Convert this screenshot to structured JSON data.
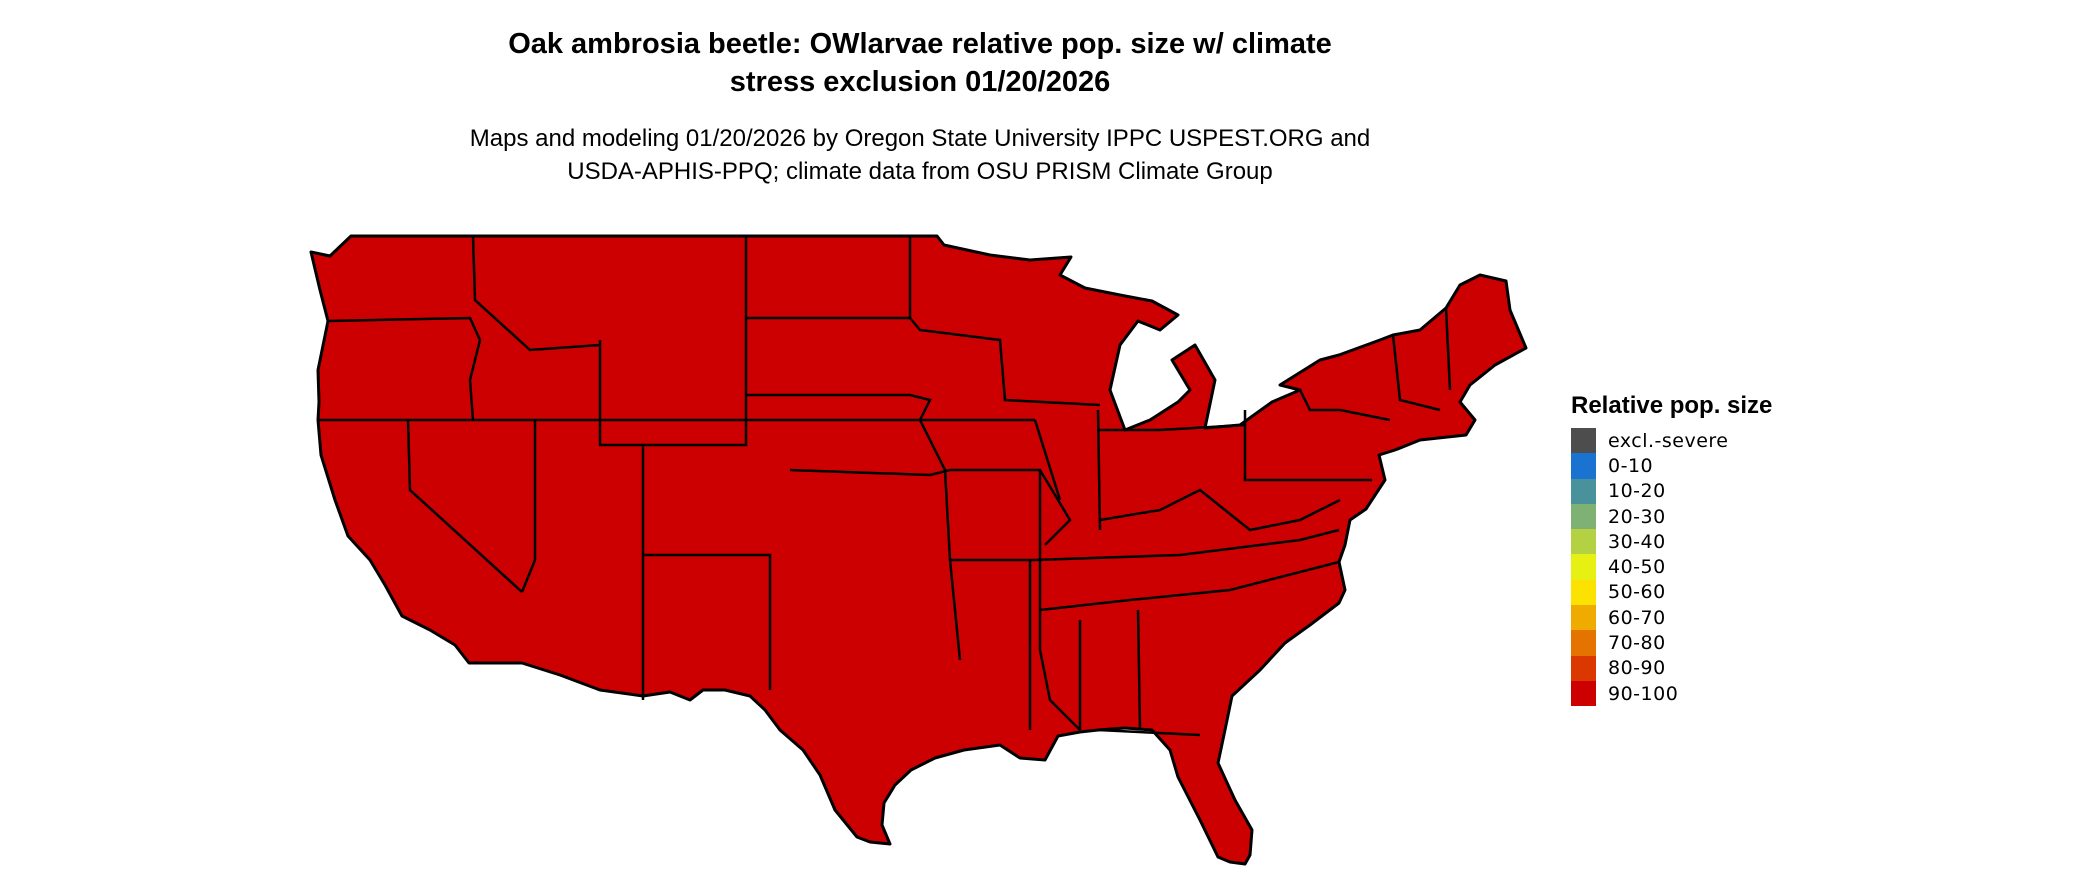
{
  "title": {
    "line1": "Oak ambrosia beetle: OWlarvae relative pop. size w/ climate",
    "line2": "stress exclusion 01/20/2026"
  },
  "subtitle": {
    "line1": "Maps and modeling 01/20/2026 by Oregon State University IPPC USPEST.ORG and",
    "line2": "USDA-APHIS-PPQ; climate data from OSU PRISM Climate Group"
  },
  "map": {
    "region": "Contiguous United States",
    "fill_category": "90-100",
    "fill_color": "#cc0000",
    "border_color": "#000000"
  },
  "legend": {
    "title": "Relative pop. size",
    "items": [
      {
        "label": "excl.-severe",
        "color": "#4d4d4d"
      },
      {
        "label": "0-10",
        "color": "#1a73d1"
      },
      {
        "label": "10-20",
        "color": "#4a929b"
      },
      {
        "label": "20-30",
        "color": "#7fb174"
      },
      {
        "label": "30-40",
        "color": "#b3d143"
      },
      {
        "label": "40-50",
        "color": "#e6f013"
      },
      {
        "label": "50-60",
        "color": "#fbe200"
      },
      {
        "label": "60-70",
        "color": "#efab00"
      },
      {
        "label": "70-80",
        "color": "#e57300"
      },
      {
        "label": "80-90",
        "color": "#db3800"
      },
      {
        "label": "90-100",
        "color": "#cc0000"
      }
    ]
  }
}
